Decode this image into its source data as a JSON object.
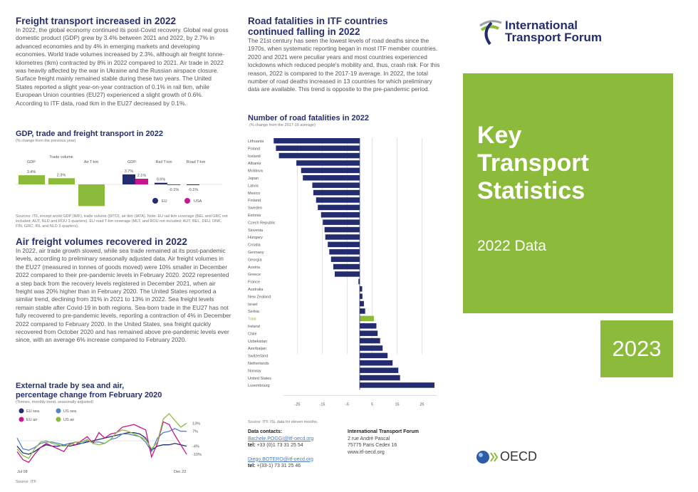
{
  "freight": {
    "title": "Freight transport increased in 2022",
    "body": "In 2022, the global economy continued its post-Covid recovery. Global real gross domestic product (GDP) grew by 3.4% between 2021 and 2022, by 2.7% in advanced economies and by 4% in emerging markets and developing economies. World trade volumes increased by 2.3%, although air freight tonne-kilometres (tkm) contracted by 8% in 2022 compared to 2021. Air trade in 2022 was heavily affected by the war in Ukraine and the Russian airspace closure. Surface freight mainly remained stable during these two years. The United States reported a slight year-on-year contraction of 0.1% in rail tkm, while European Union countries (EU27) experienced a slight growth of 0.6%. According to ITF data, road tkm in the EU27 decreased by 0.1%."
  },
  "air": {
    "title": "Air freight volumes recovered in 2022",
    "body": "In 2022, air trade growth slowed, while sea trade remained at its post-pandemic levels, according to preliminary seasonally adjusted data. Air freight volumes in the EU27 (measured in tonnes of goods moved) were 10% smaller in December 2022 compared to their pre-pandemic levels in February 2020. 2022 represented a step back from the recovery levels registered in December 2021, when air freight was 20% higher than in February 2020. The United States reported a similar trend, declining from 31% in 2021 to 13% in 2022. Sea freight levels remain stable after Covid-19 in both regions. Sea-born trade in the EU27 has not fully recovered to pre-pandemic levels, reporting a contraction of 4% in December 2022 compared to February 2020. In the United States, sea freight quickly recovered from October 2020 and has remained above pre-pandemic levels ever since, with an average 6% increase compared to February 2020."
  },
  "road": {
    "title_line1": "Road fatalities in ITF countries",
    "title_line2": "continued falling in 2022",
    "body": "The 21st century has seen the lowest levels of road deaths since the 1970s, when systematic reporting began in most ITF member countries. 2020 and 2021 were peculiar years and most countries experienced lockdowns which reduced people's mobility and, thus, crash risk. For this reason, 2022 is compared to the 2017-19 average. In 2022, the total number of road deaths increased in 13 countries for which preliminary data are available. This trend is opposite to the pre-pandemic period."
  },
  "contacts": {
    "heading": "Data contacts:",
    "email1": "Bachele.POGGI@itf-oecd.org",
    "tel_label": "tel:",
    "tel1": "+33 (0)1 73 31 25 54",
    "email2": "Diego.BOTERO@itf-oecd.org",
    "tel2": "+(33-1) 73 31 25 46",
    "org": "International Transport Forum",
    "addr1": "2 rue André Pascal",
    "addr2": "75775 Paris Cedex 16",
    "web": "www.itf-oecd.org"
  },
  "cover": {
    "logo_line1": "International",
    "logo_line2": "Transport Forum",
    "title1": "Key",
    "title2": "Transport",
    "title3": "Statistics",
    "subtitle": "2022 Data",
    "year": "2023",
    "oecd": "OECD"
  },
  "colors": {
    "navy": "#232c6e",
    "green": "#8cbb3b",
    "magenta": "#c8168c",
    "blue": "#4f86c6"
  },
  "chart_data": [
    {
      "type": "bar",
      "title": "GDP, trade and freight transport in 2022",
      "subtitle": "(% change from the previous year)",
      "world": {
        "categories": [
          "GDP",
          "Trade volume",
          "Air T-km"
        ],
        "values": [
          3.4,
          2.3,
          -8.0
        ],
        "labels": [
          "3.4%",
          "2.3%",
          "-8.0%"
        ]
      },
      "regional": {
        "categories": [
          "GDP",
          "Rail T-km",
          "Road T-km"
        ],
        "series": [
          {
            "name": "EU",
            "values": [
              3.7,
              0.6,
              -0.1
            ],
            "labels": [
              "3.7%",
              "0.6%",
              "-0.1%"
            ]
          },
          {
            "name": "USA",
            "values": [
              2.1,
              -0.1,
              null
            ],
            "labels": [
              "2.1%",
              "-0.1%",
              ""
            ]
          }
        ]
      },
      "source": "Sources: ITF, except world GDP (IMF), trade volume (WTO), air tkm (IATA). Note: EU rail tkm coverage (BEL and GRC not included; AUT, NLD and ROU 3 quarters). EU road T-km coverage (MLT, and ROU not included; AUT, BEL, DEU, DNK, FIN, GRC, IRL and NLD 3 quarters)."
    },
    {
      "type": "line",
      "title_line1": "External trade by sea and air,",
      "title_line2": "percentage change from February 2020",
      "subtitle": "(Tonnes, monthly trend, seasonally adjusted)",
      "x_labels": [
        "Jul 08",
        "Dec 22"
      ],
      "end_labels": [
        "13%",
        "7%",
        "-4%",
        "-10%"
      ],
      "source": "Source: ITF.",
      "series": [
        {
          "name": "EU sea",
          "values": [
            -4,
            -9,
            -10,
            -8,
            -5,
            -3,
            -4,
            -4,
            -3,
            -4,
            -3,
            -2,
            -1,
            0,
            1,
            2,
            3,
            4,
            5,
            6,
            6,
            5,
            2,
            -7,
            -4,
            -3,
            -3,
            -2,
            -3,
            -4
          ]
        },
        {
          "name": "US sea",
          "values": [
            2,
            -6,
            -7,
            -5,
            -2,
            -1,
            -1,
            -2,
            -3,
            -2,
            -1,
            -2,
            0,
            -1,
            -1,
            -2,
            1,
            2,
            5,
            5,
            4,
            3,
            -1,
            -8,
            2,
            6,
            7,
            9,
            7,
            7
          ]
        },
        {
          "name": "EU air",
          "values": [
            -8,
            -14,
            -16,
            -10,
            -5,
            -2,
            -4,
            -6,
            -8,
            -2,
            -3,
            0,
            3,
            -2,
            6,
            2,
            5,
            6,
            10,
            11,
            12,
            10,
            8,
            -12,
            -2,
            14,
            12,
            4,
            -3,
            -10
          ]
        },
        {
          "name": "US air",
          "values": [
            -6,
            -11,
            -13,
            -6,
            -1,
            0,
            -2,
            -3,
            -4,
            -3,
            -1,
            -1,
            1,
            -2,
            -3,
            -2,
            1,
            6,
            8,
            7,
            5,
            3,
            1,
            -6,
            -1,
            16,
            20,
            15,
            10,
            13
          ]
        }
      ]
    },
    {
      "type": "bar",
      "orientation": "horizontal",
      "title": "Number of road fatalities in 2022",
      "subtitle": "(% change from the 2017-19 average)",
      "xlim": [
        -35,
        30
      ],
      "xticks": [
        -25,
        -15,
        -5,
        5,
        15,
        25
      ],
      "source": "Source: ITF. ISL data for eleven months.",
      "categories": [
        "Lithuania",
        "Poland",
        "Iceland",
        "Albania",
        "Moldova",
        "Japan",
        "Latvia",
        "Mexico",
        "Finland",
        "Sweden",
        "Estonia",
        "Czech Republic",
        "Slovenia",
        "Hungary",
        "Croatia",
        "Germany",
        "Georgia",
        "Austria",
        "Greece",
        "France",
        "Australia",
        "New Zealand",
        "Israel",
        "Serbia",
        "Total",
        "Ireland",
        "Chile",
        "Uzbekistan",
        "Azerbaijan",
        "Switzerland",
        "Netherlands",
        "Norway",
        "United States",
        "Luxembourg"
      ],
      "values": [
        -34.5,
        -33.6,
        -32.4,
        -25.4,
        -23.5,
        -22.8,
        -19,
        -18.6,
        -17.5,
        -16.8,
        -15.5,
        -14.8,
        -14.1,
        -13.8,
        -12.8,
        -12.2,
        -11.5,
        -10.6,
        -10,
        -0.5,
        1,
        1.1,
        1.7,
        2.2,
        5.7,
        6.7,
        7.2,
        8.2,
        9.2,
        11.2,
        13.2,
        15.5,
        16.2,
        30
      ]
    }
  ]
}
